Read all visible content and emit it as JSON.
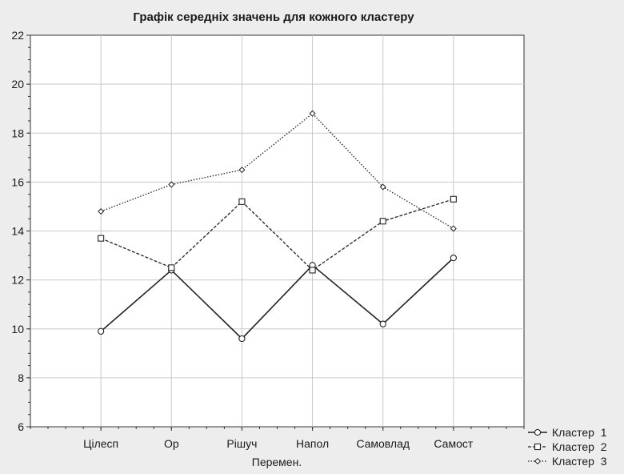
{
  "chart_data": {
    "type": "line",
    "title": "Графік середніх значень для кожного кластеру",
    "xlabel": "Перемен.",
    "ylabel": "",
    "categories": [
      "Цілесп",
      "Ор",
      "Рішуч",
      "Напол",
      "Самовлад",
      "Самост"
    ],
    "ylim": [
      6,
      22
    ],
    "yticks": [
      6,
      8,
      10,
      12,
      14,
      16,
      18,
      20,
      22
    ],
    "grid": true,
    "legend_position": "bottom-right",
    "series": [
      {
        "name": "Кластер  1",
        "marker": "circle",
        "line": "solid",
        "values": [
          9.9,
          12.4,
          9.6,
          12.6,
          10.2,
          12.9
        ]
      },
      {
        "name": "Кластер  2",
        "marker": "square",
        "line": "dashed",
        "values": [
          13.7,
          12.5,
          15.2,
          12.4,
          14.4,
          15.3
        ]
      },
      {
        "name": "Кластер  3",
        "marker": "diamond",
        "line": "dotted",
        "values": [
          14.8,
          15.9,
          16.5,
          18.8,
          15.8,
          14.1
        ]
      }
    ]
  }
}
